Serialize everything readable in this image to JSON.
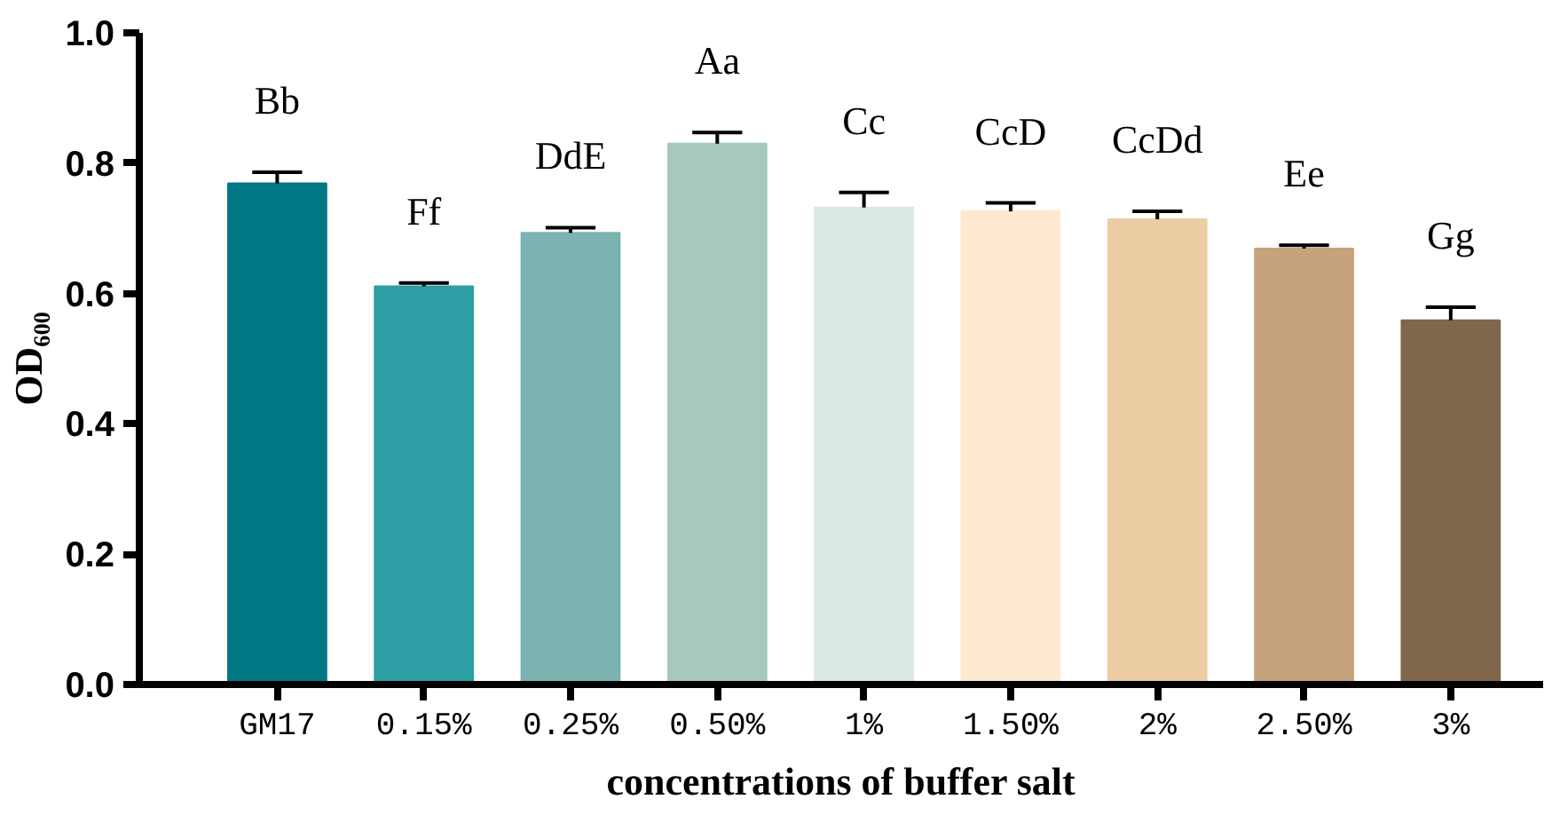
{
  "chart_data": {
    "type": "bar",
    "xlabel": "concentrations of buffer salt",
    "ylabel": "OD₆₀₀",
    "categories": [
      "GM17",
      "0.15%",
      "0.25%",
      "0.50%",
      "1%",
      "1.50%",
      "2%",
      "2.50%",
      "3%"
    ],
    "values": [
      0.769,
      0.611,
      0.693,
      0.83,
      0.732,
      0.726,
      0.714,
      0.669,
      0.559
    ],
    "errors": [
      0.017,
      0.005,
      0.008,
      0.017,
      0.023,
      0.013,
      0.012,
      0.005,
      0.02
    ],
    "colors": [
      "#037885",
      "#2c9ea4",
      "#7bb3b0",
      "#a7c8bd",
      "#dae9e3",
      "#fee8d0",
      "#eccca3",
      "#c6a27d",
      "#7f674b"
    ],
    "ylim": [
      0,
      1.0
    ],
    "yticks": [
      {
        "value": 0,
        "label": "0.0"
      },
      {
        "value": 0.2,
        "label": "0.2"
      },
      {
        "value": 0.4,
        "label": "0.4"
      },
      {
        "value": 0.6,
        "label": "0.6"
      },
      {
        "value": 0.8,
        "label": "0.8"
      },
      {
        "value": 1.0,
        "label": "1.0"
      }
    ],
    "grid": false,
    "annotations": [
      "Bb",
      "Ff",
      "DdE",
      "Aa",
      "Cc",
      "CcD",
      "CcDd",
      "Ee",
      "Gg"
    ]
  }
}
